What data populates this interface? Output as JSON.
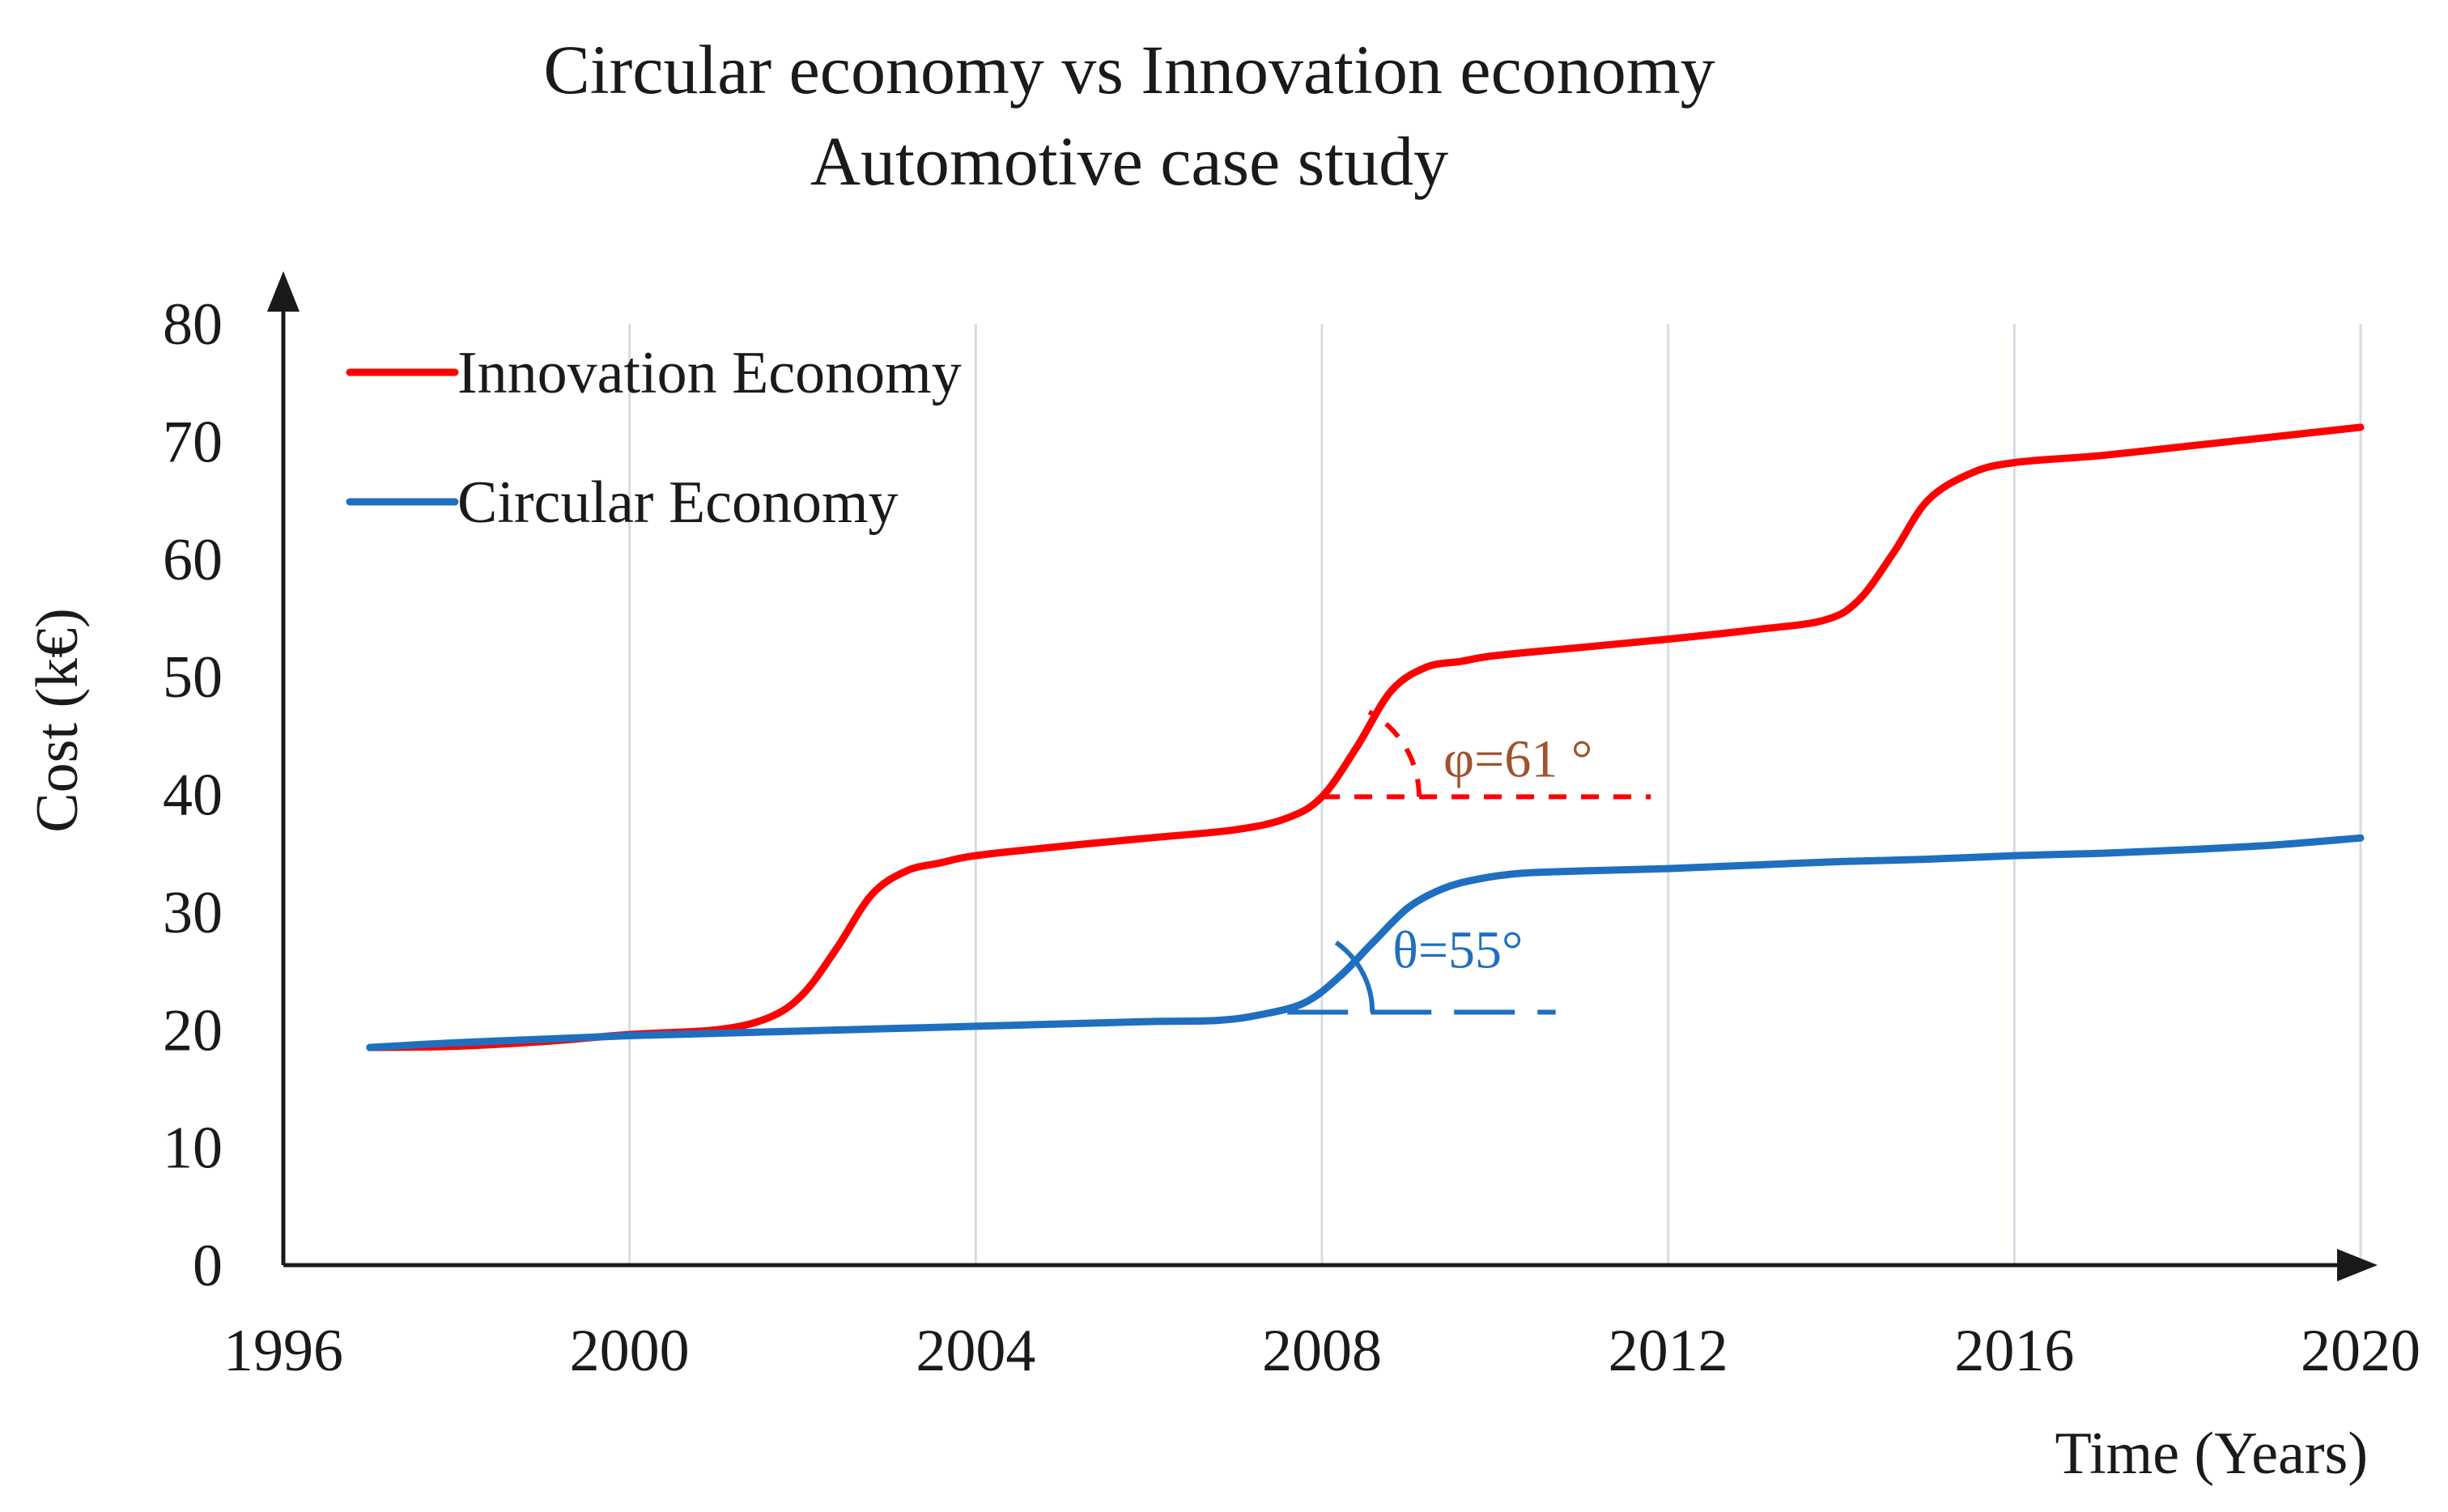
{
  "chart_data": {
    "type": "line",
    "title": "Circular economy vs Innovation economy",
    "subtitle": "Automotive case study",
    "xlabel": "Time (Years)",
    "ylabel": "Cost (k€)",
    "xlim": [
      1996,
      2020
    ],
    "ylim": [
      0,
      80
    ],
    "x_ticks": [
      1996,
      2000,
      2004,
      2008,
      2012,
      2016,
      2020
    ],
    "x_tick_labels": [
      "1996",
      "2000",
      "2004",
      "2008",
      "2012",
      "2016",
      "2020"
    ],
    "y_ticks": [
      0,
      10,
      20,
      30,
      40,
      50,
      60,
      70,
      80
    ],
    "y_tick_labels": [
      "0",
      "10",
      "20",
      "30",
      "40",
      "50",
      "60",
      "70",
      "80"
    ],
    "grid": "vertical",
    "legend_position": "top-left",
    "series": [
      {
        "name": "Innovation Economy",
        "color": "#ff0000",
        "x": [
          1997,
          1998,
          1999,
          2000,
          2001,
          2001.6,
          2002,
          2002.4,
          2002.8,
          2003.2,
          2003.6,
          2004,
          2005,
          2006,
          2007,
          2007.6,
          2008,
          2008.4,
          2008.8,
          2009.2,
          2009.6,
          2010,
          2011,
          2012,
          2013,
          2013.8,
          2014.2,
          2014.6,
          2015,
          2015.5,
          2016,
          2017,
          2018,
          2019,
          2020
        ],
        "values": [
          18.5,
          18.6,
          19.0,
          19.6,
          20.0,
          21.0,
          23.0,
          27.0,
          31.5,
          33.5,
          34.2,
          34.8,
          35.6,
          36.3,
          37.0,
          38.0,
          39.8,
          44.0,
          48.8,
          50.8,
          51.3,
          51.8,
          52.5,
          53.2,
          54.0,
          54.8,
          56.5,
          60.5,
          65.0,
          67.3,
          68.2,
          68.8,
          69.6,
          70.4,
          71.2
        ]
      },
      {
        "name": "Circular Economy",
        "color": "#1f6fc0",
        "x": [
          1997,
          1998,
          1999,
          2000,
          2001,
          2002,
          2003,
          2004,
          2005,
          2006,
          2006.8,
          2007.3,
          2007.8,
          2008.2,
          2008.6,
          2009,
          2009.4,
          2009.8,
          2010.3,
          2011,
          2012,
          2013,
          2014,
          2015,
          2016,
          2017,
          2018,
          2019,
          2020
        ],
        "values": [
          18.5,
          18.9,
          19.2,
          19.5,
          19.7,
          19.9,
          20.1,
          20.3,
          20.5,
          20.7,
          20.8,
          21.3,
          22.3,
          24.5,
          27.5,
          30.4,
          32.0,
          32.8,
          33.3,
          33.5,
          33.7,
          34.0,
          34.3,
          34.5,
          34.8,
          35.0,
          35.3,
          35.7,
          36.3
        ]
      }
    ],
    "annotations": [
      {
        "text": "φ=61 °",
        "series": "Innovation Economy",
        "angle_deg": 61,
        "baseline_y": 39.8,
        "baseline_x": [
          2008,
          2011.8
        ],
        "color": "#a0522d",
        "line_color": "#ff0000"
      },
      {
        "text": "θ=55°",
        "series": "Circular Economy",
        "angle_deg": 55,
        "baseline_y": 21.5,
        "baseline_x": [
          2007.6,
          2010.7
        ],
        "color": "#1f6fc0",
        "line_color": "#1f6fc0"
      }
    ]
  }
}
